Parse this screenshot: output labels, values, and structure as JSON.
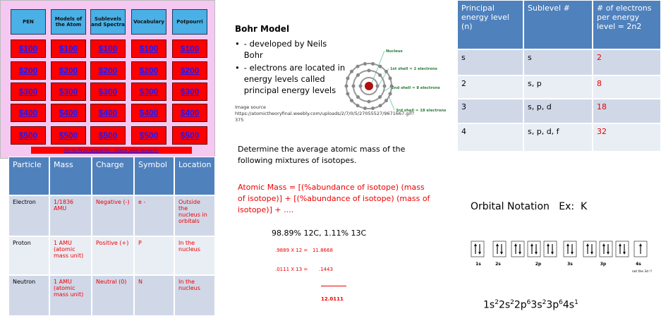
{
  "jeopardy": {
    "categories": [
      "PEN",
      "Models of the Atom",
      "Sublevels and Spectra",
      "Vocabulary",
      "Potpourri"
    ],
    "values": [
      "$100",
      "$200",
      "$300",
      "$400",
      "$500"
    ],
    "footer": "On to final Jeopardy – place your wagers!"
  },
  "bohr": {
    "title": "Bohr Model",
    "bullets": [
      "- developed by Neils Bohr",
      "- electrons are located in energy levels called principal energy levels"
    ],
    "image_source": "Image source https://atomictheoryfinal.weebly.com/uploads/2/7/0/5/27055527/9671667.gif?375",
    "diagram_labels": [
      "Nucleus",
      "1st shell = 2 electrons",
      "2nd shell = 8 electrons",
      "3rd shell = 18 electrons"
    ]
  },
  "energy_table": {
    "headers": [
      "Principal energy level (n)",
      "Sublevel #",
      "# of electrons per energy level = 2n2"
    ],
    "rows": [
      [
        "s",
        "s",
        "2"
      ],
      [
        "2",
        "s, p",
        "8"
      ],
      [
        "3",
        "s, p, d",
        "18"
      ],
      [
        "4",
        "s, p, d, f",
        "32"
      ]
    ]
  },
  "particle_table": {
    "headers": [
      "Particle",
      "Mass",
      "Charge",
      "Symbol",
      "Location"
    ],
    "rows": [
      [
        "Electron",
        "1/1836 AMU",
        "Negative (-)",
        "e -",
        "Outside the nucleus in orbitals"
      ],
      [
        "Proton",
        "1 AMU (atomic mass unit)",
        "Positive (+)",
        "P",
        "In the nucleus"
      ],
      [
        "Neutron",
        "1 AMU (atomic mass unit)",
        "Neutral  (0)",
        "N",
        "In the nucleus"
      ]
    ]
  },
  "isotopes": {
    "prompt": "Determine the average atomic mass of the following mixtures of isotopes.",
    "formula": "Atomic Mass = [(%abundance of isotope) (mass of isotope)] + [(%abundance of isotope) (mass of isotope)] + ....",
    "example": "98.89% 12C, 1.11% 13C",
    "steps": [
      ".9889 X 12 =   11.8668",
      ".0111 X 13 =       .1443"
    ],
    "total": "12.0111"
  },
  "orbital": {
    "title": "Orbital Notation   Ex:  K",
    "labels": [
      "1s",
      "2s",
      "2p",
      "3s",
      "3p",
      "4s"
    ],
    "note": "not the 3d !!",
    "configuration": [
      {
        "base": "1s",
        "sup": "2"
      },
      {
        "base": "2s",
        "sup": "2"
      },
      {
        "base": "2p",
        "sup": "6"
      },
      {
        "base": "3s",
        "sup": "2"
      },
      {
        "base": "3p",
        "sup": "6"
      },
      {
        "base": "4s",
        "sup": "1"
      }
    ]
  }
}
